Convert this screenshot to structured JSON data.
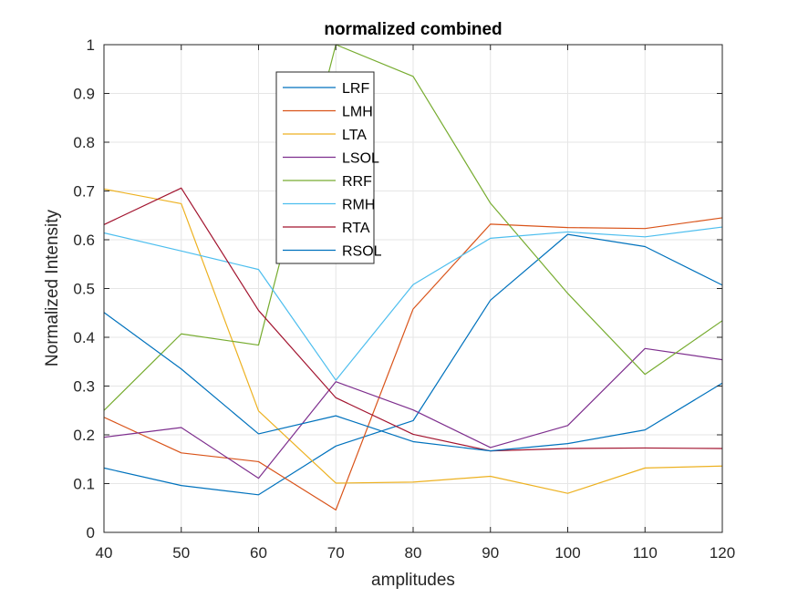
{
  "chart_data": {
    "type": "line",
    "title": "normalized combined",
    "xlabel": "amplitudes",
    "ylabel": "Normalized Intensity",
    "xlim": [
      40,
      120
    ],
    "ylim": [
      0,
      1
    ],
    "xticks": [
      "40",
      "50",
      "60",
      "70",
      "80",
      "90",
      "100",
      "110",
      "120"
    ],
    "yticks": [
      "0",
      "0.1",
      "0.2",
      "0.3",
      "0.4",
      "0.5",
      "0.6",
      "0.7",
      "0.8",
      "0.9",
      "1"
    ],
    "grid": true,
    "legend_position": "top-center",
    "x": [
      40,
      50,
      60,
      70,
      80,
      90,
      100,
      110,
      120
    ],
    "series": [
      {
        "name": "LRF",
        "color": "#0072BD",
        "values": [
          0.132,
          0.096,
          0.077,
          0.177,
          0.229,
          0.476,
          0.611,
          0.586,
          0.507
        ]
      },
      {
        "name": "LMH",
        "color": "#D95319",
        "values": [
          0.236,
          0.163,
          0.145,
          0.046,
          0.458,
          0.632,
          0.625,
          0.623,
          0.645
        ]
      },
      {
        "name": "LTA",
        "color": "#EDB120",
        "values": [
          0.704,
          0.674,
          0.249,
          0.101,
          0.103,
          0.115,
          0.08,
          0.132,
          0.136
        ]
      },
      {
        "name": "LSOL",
        "color": "#7E2F8E",
        "values": [
          0.195,
          0.215,
          0.111,
          0.309,
          0.251,
          0.174,
          0.219,
          0.377,
          0.354
        ]
      },
      {
        "name": "RRF",
        "color": "#77AC30",
        "values": [
          0.25,
          0.407,
          0.384,
          1.0,
          0.935,
          0.675,
          0.49,
          0.324,
          0.434
        ]
      },
      {
        "name": "RMH",
        "color": "#4DBEEE",
        "values": [
          0.614,
          0.577,
          0.539,
          0.312,
          0.508,
          0.603,
          0.616,
          0.606,
          0.626
        ]
      },
      {
        "name": "RTA",
        "color": "#A2142F",
        "values": [
          0.631,
          0.706,
          0.455,
          0.276,
          0.201,
          0.167,
          0.172,
          0.173,
          0.172
        ]
      },
      {
        "name": "RSOL",
        "color": "#0072BD",
        "values": [
          0.451,
          0.335,
          0.202,
          0.239,
          0.186,
          0.167,
          0.182,
          0.21,
          0.306
        ]
      }
    ]
  }
}
